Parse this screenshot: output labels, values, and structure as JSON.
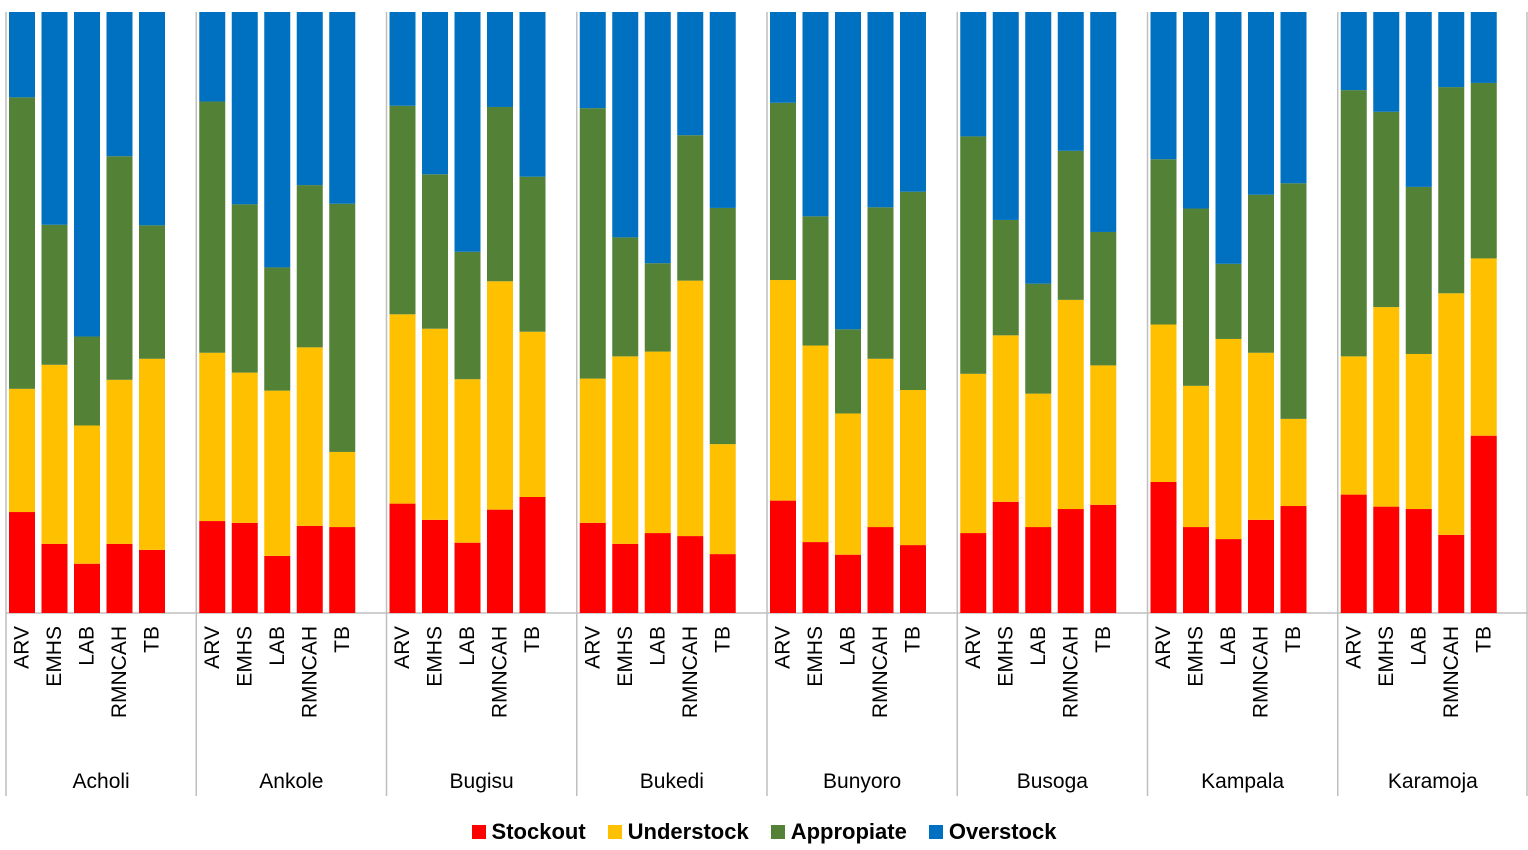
{
  "chart_data": {
    "type": "bar",
    "stacked": true,
    "percent_stacked": true,
    "ylim": [
      0,
      100
    ],
    "grid": false,
    "legend_position": "bottom",
    "groups": [
      "Acholi",
      "Ankole",
      "Bugisu",
      "Bukedi",
      "Bunyoro",
      "Busoga",
      "Kampala",
      "Karamoja"
    ],
    "categories": [
      "ARV",
      "EMHS",
      "LAB",
      "RMNCAH",
      "TB"
    ],
    "series": [
      {
        "name": "Stockout",
        "color": "#ff0000",
        "values": [
          [
            16.8,
            11.5,
            8.2,
            11.5,
            10.5
          ],
          [
            15.3,
            15.0,
            9.5,
            14.5,
            14.3
          ],
          [
            18.2,
            15.5,
            11.7,
            17.2,
            19.3
          ],
          [
            15.0,
            11.5,
            13.3,
            12.8,
            9.8
          ],
          [
            18.7,
            11.8,
            9.7,
            14.3,
            11.3
          ],
          [
            13.3,
            18.5,
            14.3,
            17.3,
            18.0
          ],
          [
            21.8,
            14.3,
            12.3,
            15.5,
            17.8
          ],
          [
            19.7,
            17.7,
            17.3,
            13.0,
            29.5
          ]
        ]
      },
      {
        "name": "Understock",
        "color": "#ffc000",
        "values": [
          [
            20.5,
            29.8,
            23.0,
            27.3,
            31.8
          ],
          [
            28.0,
            25.0,
            27.5,
            29.7,
            12.5
          ],
          [
            31.5,
            31.8,
            27.2,
            38.0,
            27.5
          ],
          [
            24.0,
            31.2,
            30.2,
            42.5,
            18.3
          ],
          [
            36.7,
            32.7,
            23.5,
            28.0,
            25.8
          ],
          [
            26.5,
            27.7,
            22.2,
            34.8,
            23.2
          ],
          [
            26.2,
            23.5,
            33.3,
            27.8,
            14.5
          ],
          [
            23.0,
            33.2,
            25.8,
            40.2,
            29.5
          ]
        ]
      },
      {
        "name": "Appropiate",
        "color": "#538135",
        "values": [
          [
            48.5,
            23.3,
            14.8,
            37.2,
            22.2
          ],
          [
            41.8,
            28.0,
            20.5,
            27.0,
            41.3
          ],
          [
            34.7,
            25.7,
            21.2,
            29.0,
            25.8
          ],
          [
            45.0,
            19.8,
            14.7,
            24.2,
            39.3
          ],
          [
            29.5,
            21.5,
            14.0,
            25.2,
            33.0
          ],
          [
            39.5,
            19.2,
            18.3,
            24.8,
            22.2
          ],
          [
            27.5,
            29.5,
            12.5,
            26.3,
            39.2
          ],
          [
            44.3,
            32.5,
            27.8,
            34.3,
            29.2
          ]
        ]
      },
      {
        "name": "Overstock",
        "color": "#0070c0",
        "values": [
          [
            14.2,
            35.4,
            54.0,
            24.0,
            35.5
          ],
          [
            14.9,
            32.0,
            42.5,
            28.8,
            31.9
          ],
          [
            15.6,
            27.0,
            39.9,
            15.8,
            27.4
          ],
          [
            16.0,
            37.5,
            41.8,
            20.5,
            32.6
          ],
          [
            15.1,
            34.0,
            52.8,
            32.5,
            29.9
          ],
          [
            20.7,
            34.6,
            45.2,
            23.1,
            36.6
          ],
          [
            24.5,
            32.7,
            41.9,
            30.4,
            28.5
          ],
          [
            13.0,
            16.6,
            29.1,
            12.5,
            11.8
          ]
        ]
      }
    ]
  }
}
